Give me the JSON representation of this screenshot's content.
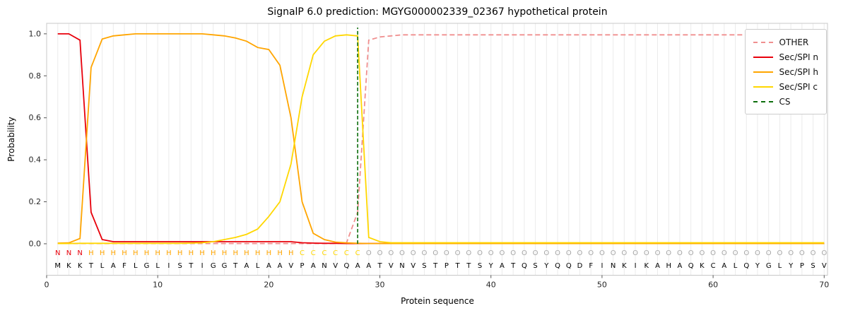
{
  "chart_data": {
    "type": "line",
    "title": "SignalP 6.0 prediction: MGYG000002339_02367 hypothetical protein",
    "xlabel": "Protein sequence",
    "ylabel": "Probability",
    "xlim": [
      0,
      70.3
    ],
    "ylim": [
      -0.15,
      1.05
    ],
    "xticks": [
      0,
      10,
      20,
      30,
      40,
      50,
      60,
      70
    ],
    "yticks": [
      0.0,
      0.2,
      0.4,
      0.6,
      0.8,
      1.0
    ],
    "grid": "vertical gridline at every residue position",
    "legend_position": "upper right",
    "frame_color": "#c8c8c8",
    "grid_color": "#ebebeb",
    "x": [
      1,
      2,
      3,
      4,
      5,
      6,
      7,
      8,
      9,
      10,
      11,
      12,
      13,
      14,
      15,
      16,
      17,
      18,
      19,
      20,
      21,
      22,
      23,
      24,
      25,
      26,
      27,
      28,
      29,
      30,
      31,
      32,
      33,
      34,
      35,
      36,
      37,
      38,
      39,
      40,
      41,
      42,
      43,
      44,
      45,
      46,
      47,
      48,
      49,
      50,
      51,
      52,
      53,
      54,
      55,
      56,
      57,
      58,
      59,
      60,
      61,
      62,
      63,
      64,
      65,
      66,
      67,
      68,
      69,
      70
    ],
    "series": [
      {
        "name": "OTHER",
        "color": "#f08f8f",
        "dashed": true,
        "values": [
          0.001,
          0.001,
          0.001,
          0.001,
          0.001,
          0.001,
          0.001,
          0.001,
          0.001,
          0.001,
          0.001,
          0.001,
          0.001,
          0.001,
          0.001,
          0.001,
          0.001,
          0.001,
          0.001,
          0.001,
          0.001,
          0.001,
          0.001,
          0.001,
          0.001,
          0.001,
          0.005,
          0.15,
          0.97,
          0.985,
          0.99,
          0.995,
          0.995,
          0.995,
          0.995,
          0.995,
          0.995,
          0.995,
          0.995,
          0.995,
          0.995,
          0.995,
          0.995,
          0.995,
          0.995,
          0.995,
          0.995,
          0.995,
          0.995,
          0.995,
          0.995,
          0.995,
          0.995,
          0.995,
          0.995,
          0.995,
          0.995,
          0.995,
          0.995,
          0.995,
          0.995,
          0.995,
          0.995,
          0.995,
          0.995,
          0.995,
          0.995,
          0.995,
          0.995,
          0.995
        ]
      },
      {
        "name": "Sec/SPI n",
        "color": "#e8000b",
        "dashed": false,
        "values": [
          1.0,
          1.0,
          0.97,
          0.15,
          0.02,
          0.01,
          0.01,
          0.01,
          0.01,
          0.01,
          0.01,
          0.01,
          0.01,
          0.01,
          0.01,
          0.01,
          0.01,
          0.01,
          0.01,
          0.01,
          0.01,
          0.01,
          0.005,
          0.003,
          0.002,
          0.002,
          0.001,
          0.001,
          0.001,
          0.001,
          0.001,
          0.001,
          0.001,
          0.001,
          0.001,
          0.001,
          0.001,
          0.001,
          0.001,
          0.001,
          0.001,
          0.001,
          0.001,
          0.001,
          0.001,
          0.001,
          0.001,
          0.001,
          0.001,
          0.001,
          0.001,
          0.001,
          0.001,
          0.001,
          0.001,
          0.001,
          0.001,
          0.001,
          0.001,
          0.001,
          0.001,
          0.001,
          0.001,
          0.001,
          0.001,
          0.001,
          0.001,
          0.001,
          0.001,
          0.001
        ]
      },
      {
        "name": "Sec/SPI h",
        "color": "#ffa500",
        "dashed": false,
        "values": [
          0.003,
          0.004,
          0.025,
          0.84,
          0.975,
          0.99,
          0.995,
          1.0,
          1.0,
          1.0,
          1.0,
          1.0,
          1.0,
          1.0,
          0.995,
          0.99,
          0.98,
          0.965,
          0.935,
          0.925,
          0.85,
          0.6,
          0.2,
          0.05,
          0.02,
          0.008,
          0.004,
          0.002,
          0.001,
          0.001,
          0.001,
          0.001,
          0.001,
          0.001,
          0.001,
          0.001,
          0.001,
          0.001,
          0.001,
          0.001,
          0.001,
          0.001,
          0.001,
          0.001,
          0.001,
          0.001,
          0.001,
          0.001,
          0.001,
          0.001,
          0.001,
          0.001,
          0.001,
          0.001,
          0.001,
          0.001,
          0.001,
          0.001,
          0.001,
          0.001,
          0.001,
          0.001,
          0.001,
          0.001,
          0.001,
          0.001,
          0.001,
          0.001,
          0.001,
          0.001
        ]
      },
      {
        "name": "Sec/SPI c",
        "color": "#ffd700",
        "dashed": false,
        "values": [
          0.001,
          0.001,
          0.002,
          0.002,
          0.002,
          0.002,
          0.002,
          0.002,
          0.002,
          0.002,
          0.002,
          0.002,
          0.003,
          0.005,
          0.01,
          0.02,
          0.03,
          0.045,
          0.07,
          0.13,
          0.2,
          0.38,
          0.7,
          0.9,
          0.965,
          0.99,
          0.995,
          0.99,
          0.03,
          0.01,
          0.005,
          0.005,
          0.005,
          0.005,
          0.005,
          0.005,
          0.005,
          0.005,
          0.005,
          0.005,
          0.005,
          0.005,
          0.005,
          0.005,
          0.005,
          0.005,
          0.005,
          0.005,
          0.005,
          0.005,
          0.005,
          0.005,
          0.005,
          0.005,
          0.005,
          0.005,
          0.005,
          0.005,
          0.005,
          0.005,
          0.005,
          0.005,
          0.005,
          0.005,
          0.005,
          0.005,
          0.005,
          0.005,
          0.005,
          0.005
        ]
      }
    ],
    "cs": {
      "label": "CS",
      "position": 28,
      "color": "#0b6e0b",
      "dashed": true
    },
    "sequence": "MKKTLAFLGLISTIGGTALAAVPANVQAATVNVSTPTTSYATQSYQQDFINKIKAHAQKCALQYGLYPSV",
    "regions": "NNNHHHHHHHHHHHHHHHHHHHCCCCCCOOOOOOOOOOOOOOOOOOOOOOOOOOOOOOOOOOOOOOOOOO",
    "region_colors": {
      "N": "#e8000b",
      "H": "#ffa500",
      "C": "#ffd700",
      "O": "#a6a6a6"
    },
    "legend": [
      {
        "label": "OTHER",
        "color": "#f08f8f",
        "dashed": true
      },
      {
        "label": "Sec/SPI n",
        "color": "#e8000b",
        "dashed": false
      },
      {
        "label": "Sec/SPI h",
        "color": "#ffa500",
        "dashed": false
      },
      {
        "label": "Sec/SPI c",
        "color": "#ffd700",
        "dashed": false
      },
      {
        "label": "CS",
        "color": "#0b6e0b",
        "dashed": true
      }
    ]
  }
}
